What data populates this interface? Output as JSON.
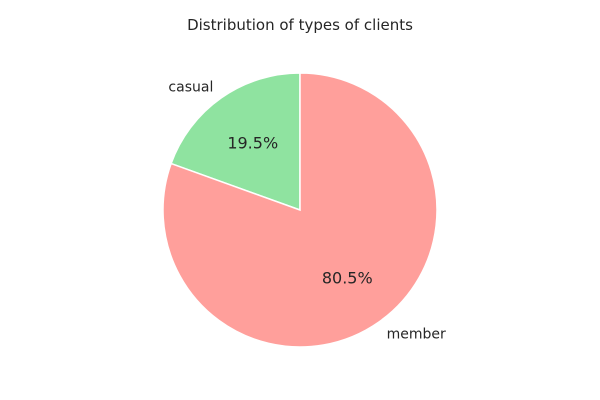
{
  "chart_data": {
    "type": "pie",
    "title": "Distribution of types of clients",
    "slices": [
      {
        "label": "casual",
        "value": 19.5,
        "pct_label": "19.5%",
        "color": "#8fe3a0"
      },
      {
        "label": "member",
        "value": 80.5,
        "pct_label": "80.5%",
        "color": "#ff9f9b"
      }
    ],
    "start_angle": 90,
    "direction": "counterclockwise",
    "legend": "none"
  }
}
